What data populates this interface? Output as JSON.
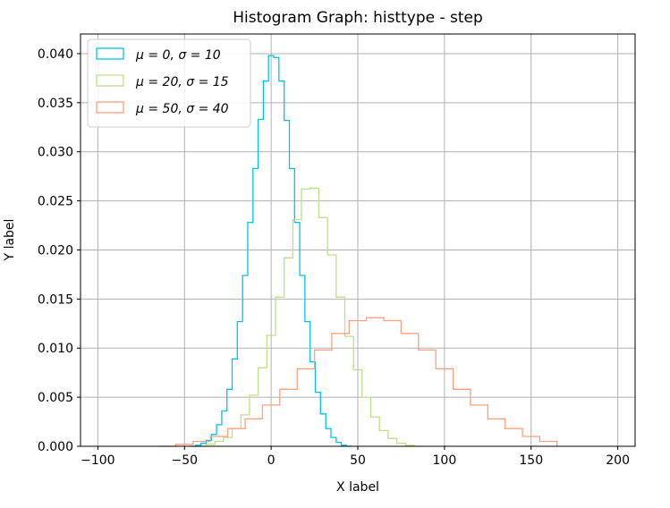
{
  "chart_data": {
    "type": "histogram",
    "histtype": "step",
    "title": "Histogram Graph: histtype - step",
    "xlabel": "X label",
    "ylabel": "Y label",
    "xlim": [
      -110,
      210
    ],
    "ylim": [
      0,
      0.042
    ],
    "grid": true,
    "legend_position": "upper-left",
    "x_ticks": [
      -100,
      -50,
      0,
      50,
      100,
      150,
      200
    ],
    "x_tick_labels": [
      "−100",
      "−50",
      "0",
      "50",
      "100",
      "150",
      "200"
    ],
    "y_ticks": [
      0,
      0.005,
      0.01,
      0.015,
      0.02,
      0.025,
      0.03,
      0.035,
      0.04
    ],
    "y_tick_labels": [
      "0.000",
      "0.005",
      "0.010",
      "0.015",
      "0.020",
      "0.025",
      "0.030",
      "0.035",
      "0.040"
    ],
    "series": [
      {
        "name": "μ = 0, σ = 10",
        "color": "#00c2f0",
        "x": [
          -45,
          -42,
          -39,
          -36,
          -33,
          -30,
          -27,
          -24,
          -21,
          -18,
          -15,
          -12,
          -9,
          -6,
          -3,
          0,
          3,
          6,
          9,
          12,
          15,
          18,
          21,
          24,
          27,
          30,
          33,
          36,
          39,
          42,
          45
        ],
        "y": [
          0.0,
          0.0001,
          0.0003,
          0.0006,
          0.0012,
          0.0022,
          0.0036,
          0.0058,
          0.0089,
          0.0127,
          0.0174,
          0.0228,
          0.0283,
          0.0333,
          0.0372,
          0.0398,
          0.0396,
          0.0372,
          0.0332,
          0.0283,
          0.0228,
          0.0174,
          0.0127,
          0.0086,
          0.0055,
          0.0033,
          0.0018,
          0.0009,
          0.0004,
          0.0001,
          0.0
        ]
      },
      {
        "name": "μ = 20, σ = 15",
        "color": "#bfe08a",
        "x": [
          -40,
          -35,
          -30,
          -25,
          -20,
          -15,
          -10,
          -5,
          0,
          5,
          10,
          15,
          20,
          25,
          30,
          35,
          40,
          45,
          50,
          55,
          60,
          65,
          70,
          75,
          80,
          85
        ],
        "y": [
          0.0,
          0.0002,
          0.0005,
          0.0009,
          0.0018,
          0.0032,
          0.0052,
          0.008,
          0.0113,
          0.0152,
          0.0192,
          0.0231,
          0.0262,
          0.0263,
          0.0233,
          0.0195,
          0.0152,
          0.0112,
          0.0078,
          0.005,
          0.003,
          0.0016,
          0.0008,
          0.0003,
          0.0001,
          0.0
        ]
      },
      {
        "name": "μ = 50, σ = 40",
        "color": "#ff9f80",
        "x": [
          -60,
          -50,
          -40,
          -30,
          -20,
          -10,
          0,
          10,
          20,
          30,
          40,
          50,
          60,
          70,
          80,
          90,
          100,
          110,
          120,
          130,
          140,
          150,
          160
        ],
        "y": [
          0.0,
          0.0002,
          0.0005,
          0.001,
          0.0018,
          0.0028,
          0.0042,
          0.0058,
          0.0079,
          0.0098,
          0.0115,
          0.0128,
          0.0131,
          0.0128,
          0.0115,
          0.0098,
          0.0079,
          0.0058,
          0.0042,
          0.0028,
          0.0018,
          0.001,
          0.0005
        ]
      }
    ]
  }
}
